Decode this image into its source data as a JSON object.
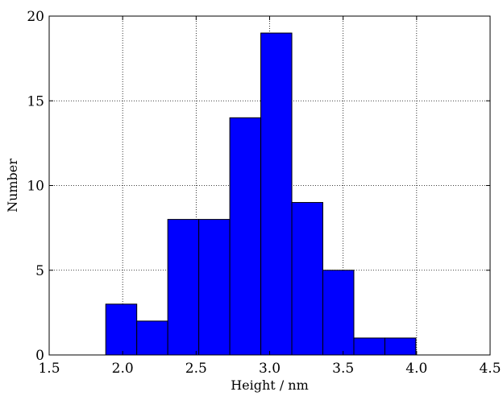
{
  "chart_data": {
    "type": "bar",
    "title": "",
    "xlabel": "Height / nm",
    "ylabel": "Number",
    "xlim": [
      1.5,
      4.5
    ],
    "ylim": [
      0,
      20
    ],
    "grid": true,
    "bar_color": "#0000ff",
    "bins": [
      {
        "x0": 1.885,
        "x1": 2.096,
        "count": 3
      },
      {
        "x0": 2.096,
        "x1": 2.307,
        "count": 2
      },
      {
        "x0": 2.307,
        "x1": 2.518,
        "count": 8
      },
      {
        "x0": 2.518,
        "x1": 2.729,
        "count": 8
      },
      {
        "x0": 2.729,
        "x1": 2.94,
        "count": 14
      },
      {
        "x0": 2.94,
        "x1": 3.151,
        "count": 19
      },
      {
        "x0": 3.151,
        "x1": 3.362,
        "count": 9
      },
      {
        "x0": 3.362,
        "x1": 3.573,
        "count": 5
      },
      {
        "x0": 3.573,
        "x1": 3.784,
        "count": 1
      },
      {
        "x0": 3.784,
        "x1": 3.995,
        "count": 1
      }
    ],
    "xticks": [
      {
        "value": 1.5,
        "label": "1.5"
      },
      {
        "value": 2.0,
        "label": "2.0"
      },
      {
        "value": 2.5,
        "label": "2.5"
      },
      {
        "value": 3.0,
        "label": "3.0"
      },
      {
        "value": 3.5,
        "label": "3.5"
      },
      {
        "value": 4.0,
        "label": "4.0"
      },
      {
        "value": 4.5,
        "label": "4.5"
      }
    ],
    "yticks": [
      {
        "value": 0,
        "label": "0"
      },
      {
        "value": 5,
        "label": "5"
      },
      {
        "value": 10,
        "label": "10"
      },
      {
        "value": 15,
        "label": "15"
      },
      {
        "value": 20,
        "label": "20"
      }
    ]
  }
}
